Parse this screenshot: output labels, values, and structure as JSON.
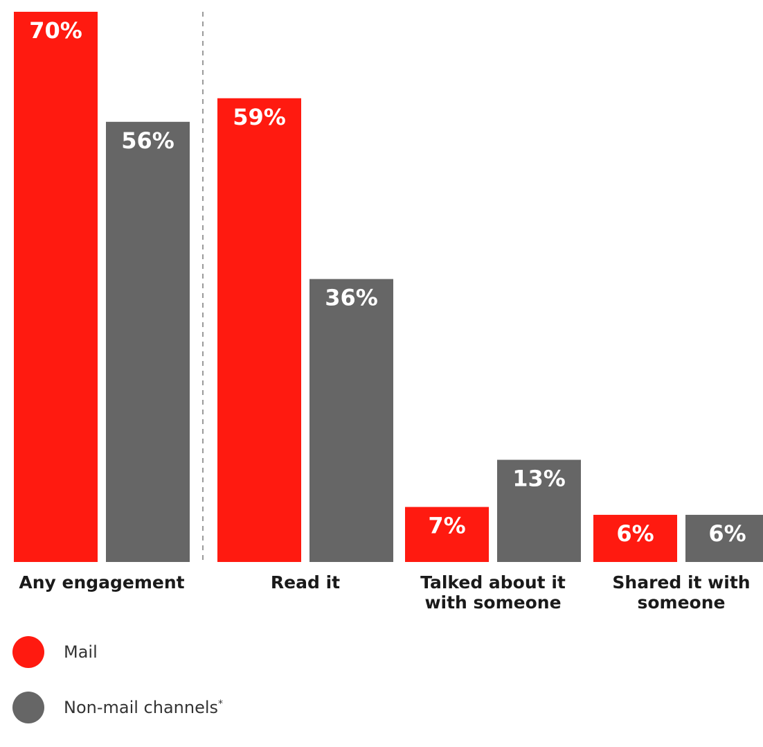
{
  "chart_data": {
    "type": "bar",
    "title": "",
    "xlabel": "",
    "ylabel": "",
    "ylim": [
      0,
      70
    ],
    "grid": false,
    "legend_placement": "bottom-left",
    "categories": [
      [
        "Any engagement"
      ],
      [
        "Read it"
      ],
      [
        "Talked about it",
        "with someone"
      ],
      [
        "Shared it with",
        "someone"
      ]
    ],
    "series": [
      {
        "name": "Mail",
        "color": "#ff1a10",
        "values": [
          70,
          59,
          7,
          6
        ],
        "labels": [
          "70%",
          "59%",
          "7%",
          "6%"
        ]
      },
      {
        "name": "Non-mail channels",
        "color": "#666666",
        "values": [
          56,
          36,
          13,
          6
        ],
        "labels": [
          "56%",
          "36%",
          "13%",
          "6%"
        ]
      }
    ],
    "separator_after_category": 0
  },
  "legend": {
    "items": [
      {
        "label": "Mail",
        "suffix": ""
      },
      {
        "label": "Non-mail channels",
        "suffix": "*"
      }
    ]
  }
}
